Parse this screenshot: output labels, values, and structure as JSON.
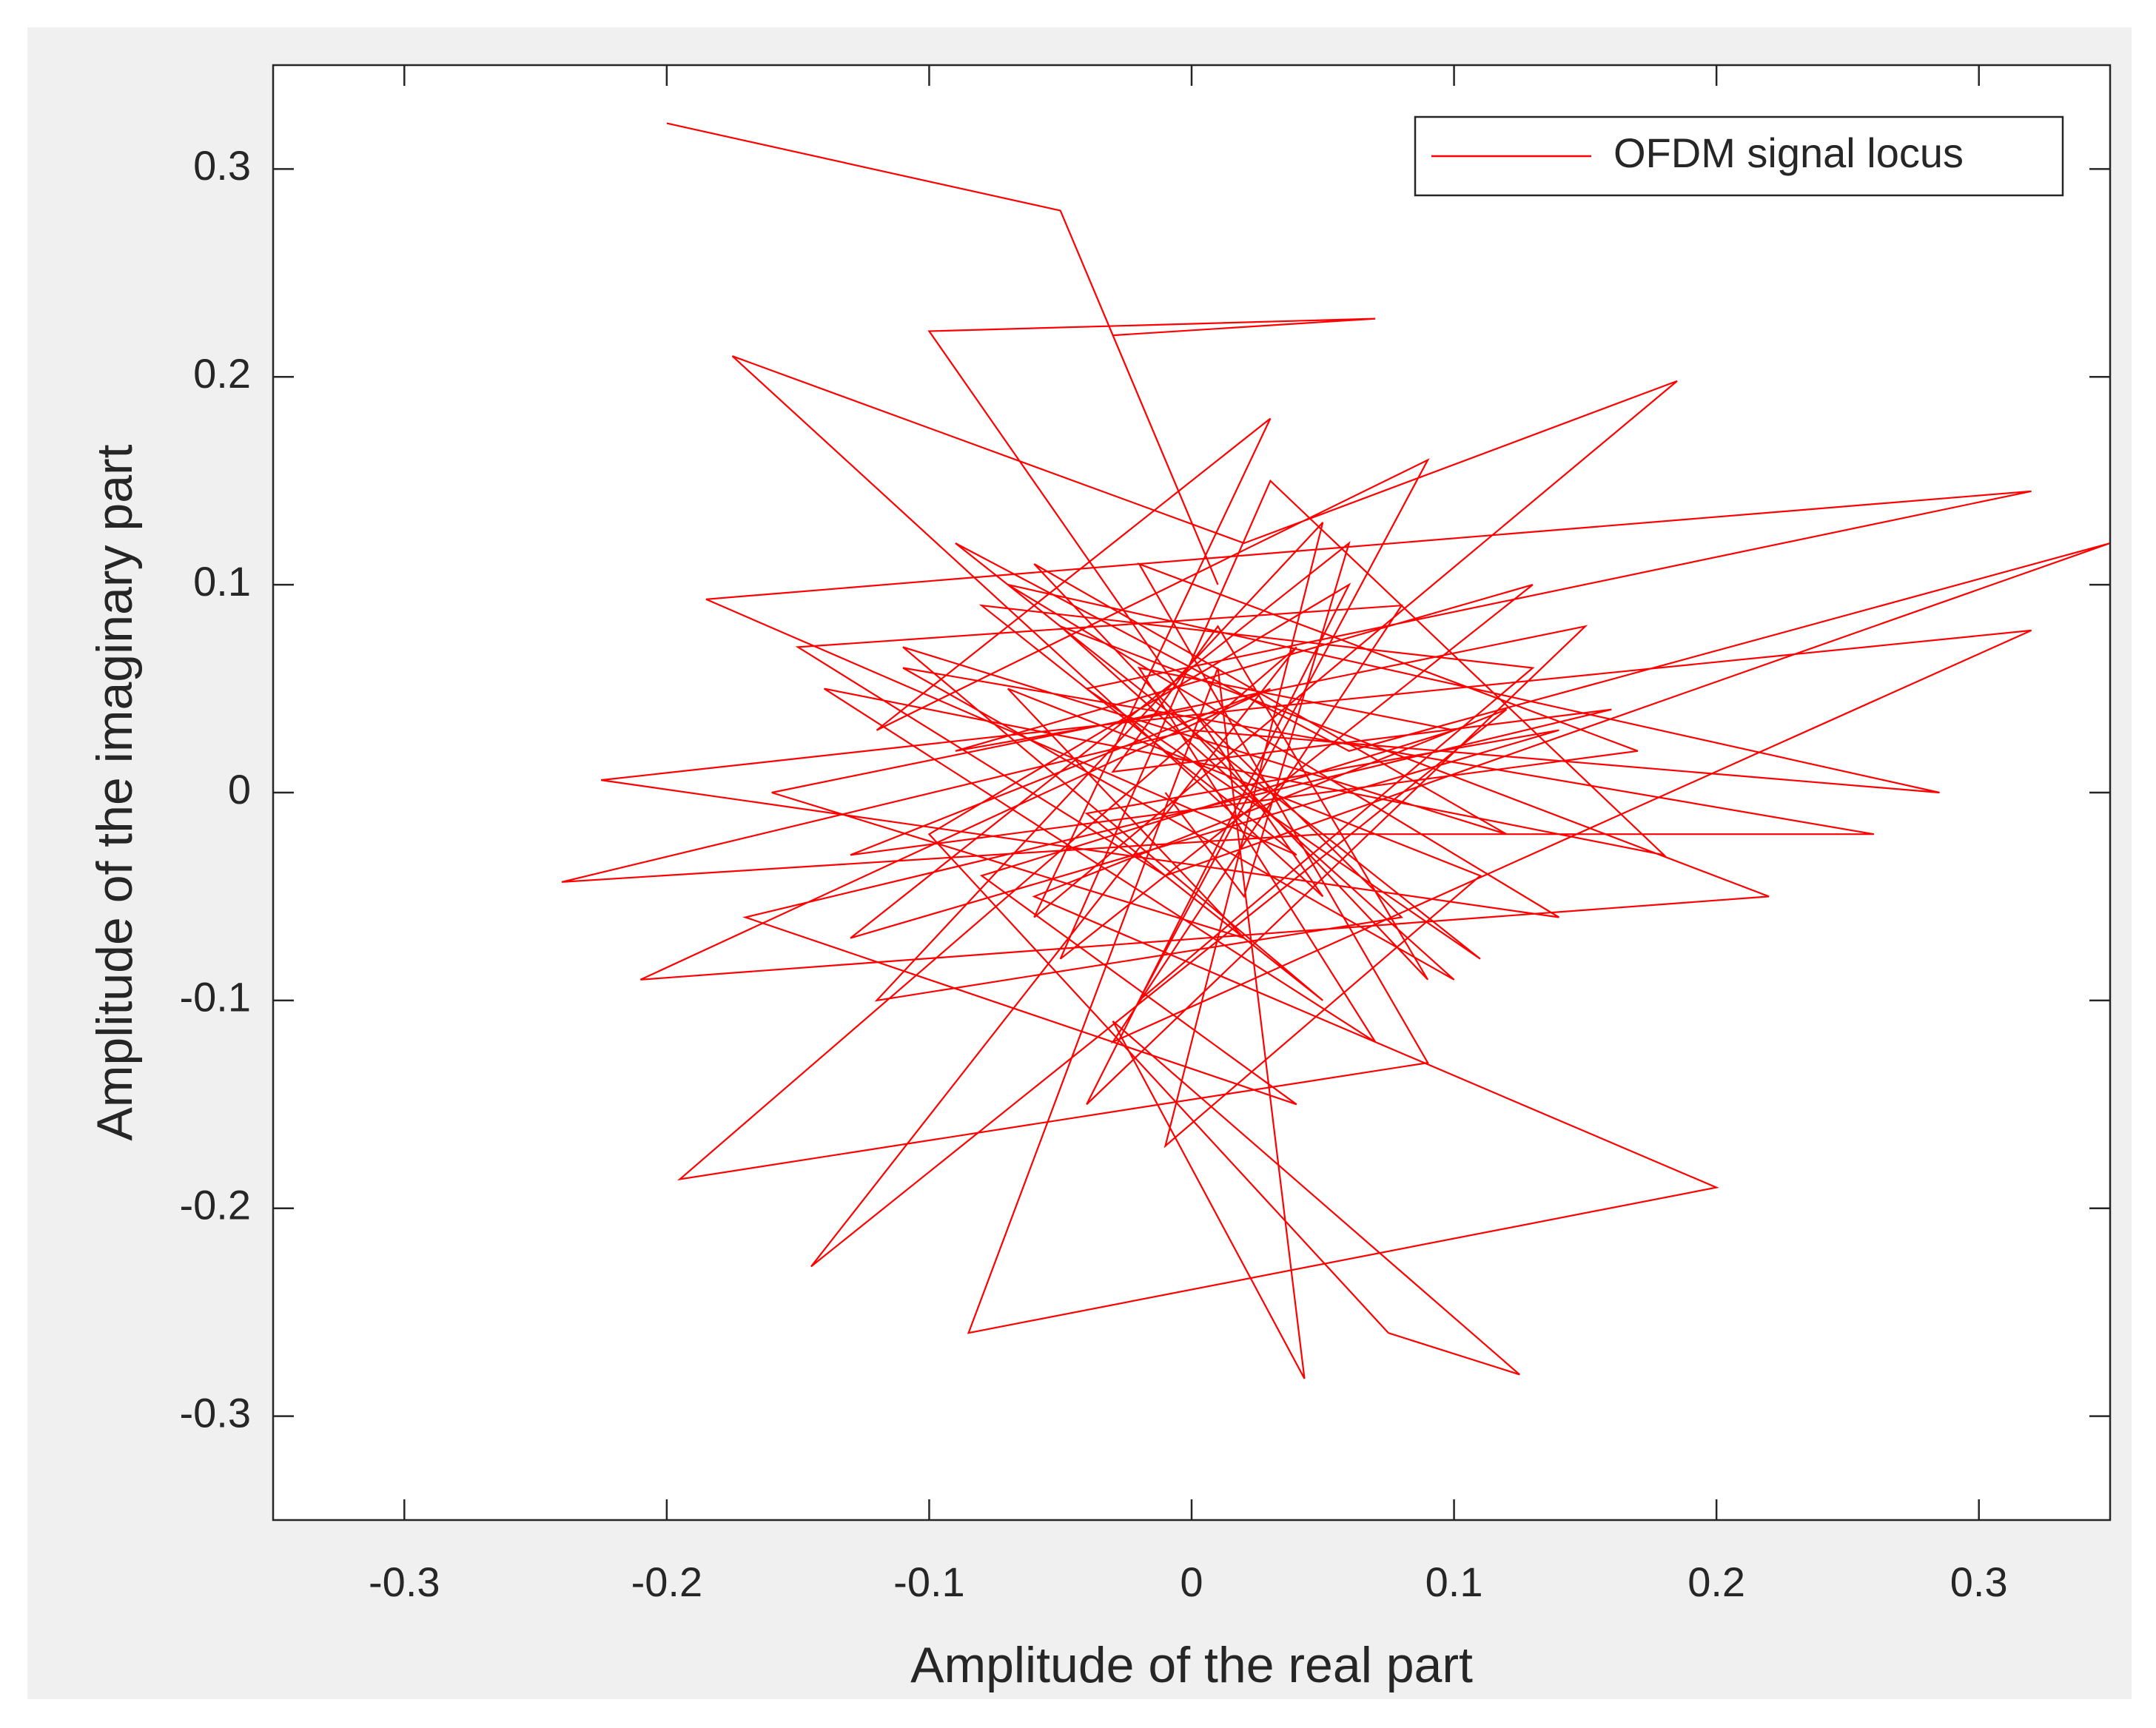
{
  "chart_data": {
    "type": "line",
    "x_label": "Amplitude of the real part",
    "y_label": "Amplitude of the imaginary part",
    "xlim": [
      -0.35,
      0.35
    ],
    "ylim": [
      -0.35,
      0.35
    ],
    "xticks": [
      -0.3,
      -0.2,
      -0.1,
      0,
      0.1,
      0.2,
      0.3
    ],
    "yticks": [
      -0.3,
      -0.2,
      -0.1,
      0,
      0.1,
      0.2,
      0.3
    ],
    "grid": false,
    "legend": "upper right",
    "x": [
      -0.2,
      -0.05,
      0.01,
      -0.03,
      0.07,
      -0.1,
      0.05,
      -0.175,
      0.02,
      0.185,
      -0.06,
      0.03,
      -0.12,
      0.09,
      -0.02,
      0.13,
      -0.08,
      0.04,
      -0.185,
      0.32,
      -0.04,
      0.11,
      -0.09,
      0.06,
      0.35,
      -0.01,
      -0.15,
      0.08,
      -0.03,
      0.32,
      0.02,
      -0.225,
      0.14,
      -0.07,
      0.285,
      0.0,
      -0.24,
      0.05,
      0.26,
      -0.11,
      0.1,
      -0.05,
      0.22,
      -0.21,
      0.03,
      -0.13,
      0.17,
      -0.02,
      0.09,
      -0.195,
      0.04,
      -0.145,
      0.12,
      -0.06,
      0.2,
      -0.085,
      0.01,
      0.043,
      -0.03,
      0.125,
      0.075,
      -0.1,
      0.06,
      -0.04,
      0.15,
      -0.16,
      0.02,
      -0.07,
      0.11,
      -0.01,
      0.05,
      -0.12,
      0.08,
      0.0,
      -0.09,
      0.13,
      -0.05,
      0.03,
      0.18,
      -0.14,
      0.07,
      -0.02,
      0.1,
      -0.08,
      0.04,
      -0.17,
      0.16,
      -0.03,
      0.01,
      0.09,
      -0.06,
      0.12,
      -0.11,
      0.05,
      -0.04,
      0.14,
      -0.13,
      0.06,
      0.02,
      -0.01
    ],
    "series": [
      {
        "name": "OFDM signal locus",
        "color": "#ff0000",
        "values": [
          0.322,
          0.28,
          0.1,
          0.22,
          0.228,
          0.222,
          -0.05,
          0.21,
          0.12,
          0.198,
          -0.06,
          0.18,
          0.03,
          0.16,
          -0.1,
          0.06,
          0.09,
          -0.03,
          0.093,
          0.145,
          0.05,
          -0.08,
          0.12,
          0.02,
          0.12,
          -0.04,
          0.07,
          0.09,
          -0.12,
          0.078,
          0.04,
          0.006,
          -0.06,
          0.1,
          0.0,
          0.03,
          -0.043,
          -0.02,
          -0.02,
          0.06,
          -0.09,
          0.08,
          -0.05,
          -0.09,
          0.05,
          -0.03,
          0.02,
          0.11,
          -0.13,
          -0.186,
          0.07,
          -0.228,
          0.04,
          -0.05,
          -0.19,
          -0.26,
          0.06,
          -0.282,
          -0.11,
          -0.28,
          -0.26,
          -0.02,
          0.1,
          -0.15,
          0.08,
          0.0,
          -0.07,
          0.05,
          -0.04,
          -0.17,
          0.13,
          -0.1,
          -0.06,
          0.04,
          0.02,
          0.1,
          -0.08,
          0.15,
          -0.03,
          0.05,
          -0.12,
          0.06,
          0.03,
          -0.04,
          -0.15,
          -0.06,
          0.04,
          0.01,
          0.08,
          -0.09,
          0.11,
          -0.02,
          0.07,
          -0.1,
          -0.01,
          0.03,
          -0.07,
          0.12,
          -0.05,
          0.0
        ]
      }
    ]
  }
}
